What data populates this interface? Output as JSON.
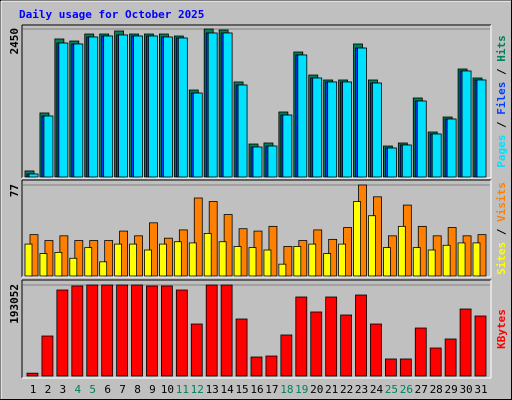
{
  "title": "Daily usage for October 2025",
  "legend_separator": " / ",
  "chart_data": [
    {
      "type": "bar",
      "ylim": [
        0,
        2450
      ],
      "yticks": [
        2450
      ],
      "series": [
        {
          "name": "Hits",
          "color": "#00805c",
          "values": [
            100,
            1060,
            2285,
            2251,
            2367,
            2367,
            2417,
            2367,
            2367,
            2367,
            2334,
            1440,
            2450,
            2433,
            1573,
            546,
            563,
            1076,
            2069,
            1688,
            1606,
            1606,
            2202,
            1606,
            513,
            563,
            1308,
            745,
            993,
            1788,
            1639
          ]
        },
        {
          "name": "Files",
          "color": "#0040ff",
          "values": [
            50,
            1010,
            2218,
            2202,
            2318,
            2334,
            2351,
            2334,
            2334,
            2318,
            2301,
            1390,
            2384,
            2384,
            1523,
            497,
            513,
            1026,
            2020,
            1639,
            1573,
            1573,
            2135,
            1556,
            480,
            530,
            1258,
            712,
            960,
            1755,
            1606
          ]
        },
        {
          "name": "Pages",
          "color": "#00e0ff",
          "values": [
            50,
            1010,
            2218,
            2202,
            2318,
            2334,
            2351,
            2334,
            2334,
            2318,
            2301,
            1390,
            2384,
            2384,
            1523,
            497,
            513,
            1026,
            2020,
            1639,
            1573,
            1573,
            2135,
            1556,
            480,
            530,
            1258,
            712,
            960,
            1755,
            1606
          ]
        }
      ]
    },
    {
      "type": "bar",
      "ylim": [
        0,
        77
      ],
      "yticks": [
        77
      ],
      "series": [
        {
          "name": "Visits",
          "color": "#ff8000",
          "values": [
            35,
            30,
            34,
            30,
            30,
            30,
            38,
            34,
            45,
            32,
            39,
            66,
            63,
            52,
            40,
            38,
            42,
            25,
            30,
            39,
            31,
            41,
            77,
            67,
            34,
            60,
            42,
            34,
            41,
            34,
            35
          ]
        },
        {
          "name": "Sites",
          "color": "#ffff00",
          "values": [
            27,
            19,
            20,
            15,
            24,
            12,
            27,
            27,
            22,
            27,
            29,
            28,
            36,
            29,
            25,
            24,
            22,
            10,
            25,
            27,
            19,
            27,
            63,
            51,
            24,
            42,
            24,
            22,
            26,
            28,
            28
          ]
        }
      ]
    },
    {
      "type": "bar",
      "ylim": [
        0,
        193052
      ],
      "yticks": [
        193052
      ],
      "categories": [
        "1",
        "2",
        "3",
        "4",
        "5",
        "6",
        "7",
        "8",
        "9",
        "10",
        "11",
        "12",
        "13",
        "14",
        "15",
        "16",
        "17",
        "18",
        "19",
        "20",
        "21",
        "22",
        "23",
        "24",
        "25",
        "26",
        "27",
        "28",
        "29",
        "30",
        "31"
      ],
      "category_colors": [
        "#000000",
        "#000000",
        "#000000",
        "#00805c",
        "#00805c",
        "#000000",
        "#000000",
        "#000000",
        "#000000",
        "#000000",
        "#00805c",
        "#00805c",
        "#000000",
        "#000000",
        "#000000",
        "#000000",
        "#000000",
        "#00805c",
        "#00805c",
        "#000000",
        "#000000",
        "#000000",
        "#000000",
        "#000000",
        "#00805c",
        "#00805c",
        "#000000",
        "#000000",
        "#000000",
        "#000000",
        "#000000"
      ],
      "series": [
        {
          "name": "KBytes",
          "color": "#ff0000",
          "values": [
            6000,
            84850,
            182450,
            190900,
            193052,
            193052,
            193052,
            193052,
            190900,
            190900,
            182450,
            110300,
            193052,
            193052,
            120900,
            40300,
            42400,
            87000,
            167600,
            135800,
            167600,
            129400,
            171800,
            110300,
            36100,
            36100,
            101800,
            59400,
            78500,
            142100,
            127300
          ]
        }
      ]
    }
  ]
}
